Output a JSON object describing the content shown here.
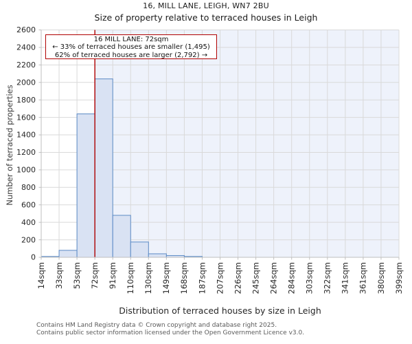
{
  "page": {
    "title": "16, MILL LANE, LEIGH, WN7 2BU",
    "subtitle": "Size of property relative to terraced houses in Leigh"
  },
  "annotation": {
    "line1": "16 MILL LANE: 72sqm",
    "line2": "← 33% of terraced houses are smaller (1,495)",
    "line3": "62% of terraced houses are larger (2,792) →"
  },
  "footer": {
    "line1": "Contains HM Land Registry data © Crown copyright and database right 2025.",
    "line2": "Contains public sector information licensed under the Open Government Licence v3.0."
  },
  "chart_data": {
    "type": "bar",
    "title": "16, MILL LANE, LEIGH, WN7 2BU",
    "subtitle": "Size of property relative to terraced houses in Leigh",
    "xlabel": "Distribution of terraced houses by size in Leigh",
    "ylabel": "Number of terraced properties",
    "categories": [
      "14sqm",
      "33sqm",
      "53sqm",
      "72sqm",
      "91sqm",
      "110sqm",
      "130sqm",
      "149sqm",
      "168sqm",
      "187sqm",
      "207sqm",
      "226sqm",
      "245sqm",
      "264sqm",
      "284sqm",
      "303sqm",
      "322sqm",
      "341sqm",
      "361sqm",
      "380sqm",
      "399sqm"
    ],
    "values": [
      10,
      80,
      1640,
      2040,
      480,
      175,
      40,
      20,
      10,
      0,
      0,
      0,
      0,
      0,
      0,
      0,
      0,
      0,
      0,
      0
    ],
    "ylim": [
      0,
      2600
    ],
    "ytick_step": 200,
    "grid": true,
    "legend": "none",
    "marker": {
      "label": "72sqm",
      "tick_index": 3
    },
    "colors": {
      "bar_fill": "#d9e2f3",
      "bar_edge": "#5b8ac5",
      "marker_line": "#b00000",
      "shaded_region": "#eef2fb",
      "gridline": "#d9d9d9",
      "axis_line": "#bfbfbf",
      "tick_text": "#262626"
    }
  }
}
